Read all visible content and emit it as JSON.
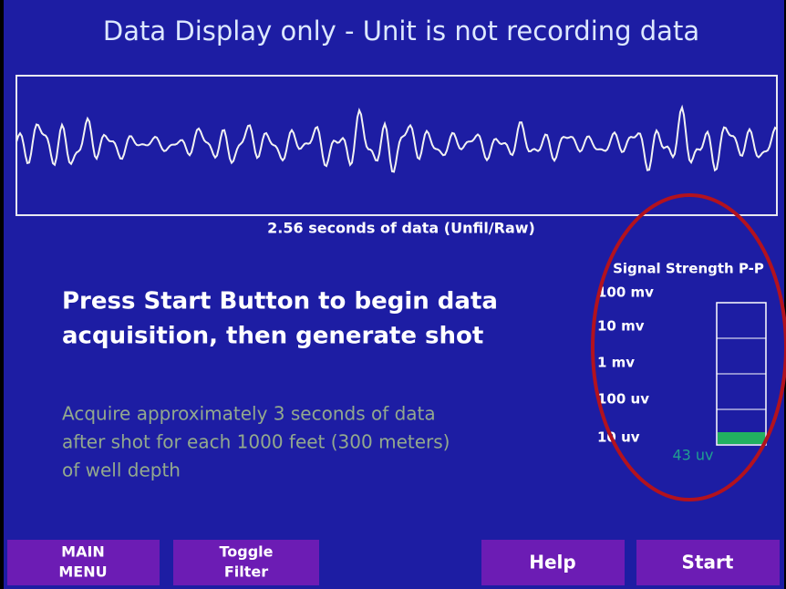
{
  "header": {
    "title": "Data Display only - Unit is not recording data"
  },
  "waveform": {
    "caption": "2.56 seconds of data (Unfil/Raw)"
  },
  "instruction": {
    "lines": [
      "Press Start Button to begin data",
      "acquisition, then generate shot"
    ]
  },
  "note": {
    "lines": [
      "Acquire approximately 3 seconds of data",
      "after shot for each 1000 feet (300 meters)",
      "of well depth"
    ]
  },
  "signal_strength": {
    "title": "Signal Strength P-P",
    "levels": [
      "100 mv",
      "10 mv",
      "1 mv",
      "100 uv",
      "10 uv"
    ],
    "reading": "43 uv"
  },
  "buttons": [
    {
      "lines": [
        "MAIN",
        "MENU"
      ]
    },
    {
      "lines": [
        "Toggle",
        "Filter"
      ]
    },
    {
      "lines": [
        "Help"
      ]
    },
    {
      "lines": [
        "Start"
      ]
    }
  ]
}
